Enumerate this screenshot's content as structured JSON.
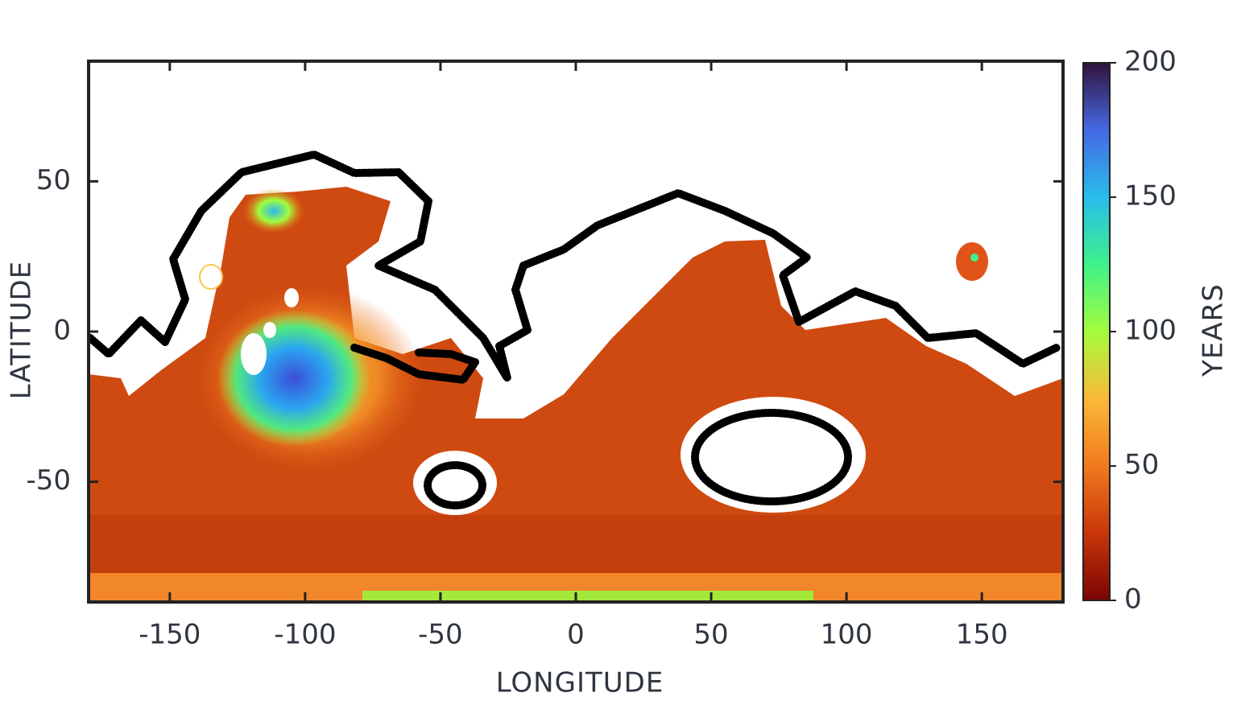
{
  "chart_data": {
    "type": "heatmap",
    "xlabel": "LONGITUDE",
    "ylabel": "LATITUDE",
    "xlim": [
      -180,
      180
    ],
    "ylim": [
      -90,
      90
    ],
    "xticks": [
      -150,
      -100,
      -50,
      0,
      50,
      100,
      150
    ],
    "yticks": [
      -50,
      0,
      50
    ],
    "colorbar": {
      "label": "YEARS",
      "lim": [
        0,
        200
      ],
      "ticks": [
        0,
        50,
        100,
        150,
        200
      ],
      "colors": [
        "#7a0403",
        "#c8360a",
        "#f07a1d",
        "#fbb938",
        "#a4fc3c",
        "#3ef28a",
        "#28bceb",
        "#4669e4",
        "#30123b"
      ]
    }
  }
}
